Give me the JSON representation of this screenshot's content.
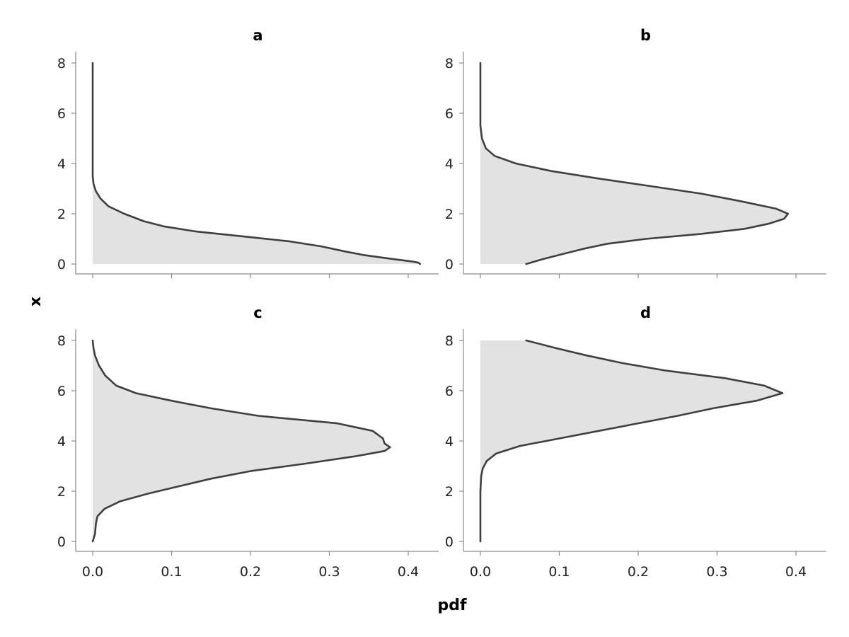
{
  "chart_data": {
    "type": "area",
    "orientation": "horizontal-density",
    "xlabel": "pdf",
    "ylabel": "x",
    "xlim": [
      0,
      0.4
    ],
    "ylim": [
      0,
      8
    ],
    "xticks": [
      "0.0",
      "0.1",
      "0.2",
      "0.3",
      "0.4"
    ],
    "yticks": [
      "0",
      "2",
      "4",
      "6",
      "8"
    ],
    "grid": false,
    "fill_color": "#e2e2e2",
    "line_color": "#3f3f3f",
    "panels": [
      {
        "title": "a",
        "curve": [
          {
            "x": 0.0,
            "pdf": 0.415
          },
          {
            "x": 0.05,
            "pdf": 0.413
          },
          {
            "x": 0.1,
            "pdf": 0.405
          },
          {
            "x": 0.2,
            "pdf": 0.38
          },
          {
            "x": 0.35,
            "pdf": 0.345
          },
          {
            "x": 0.5,
            "pdf": 0.32
          },
          {
            "x": 0.7,
            "pdf": 0.29
          },
          {
            "x": 0.9,
            "pdf": 0.25
          },
          {
            "x": 1.1,
            "pdf": 0.19
          },
          {
            "x": 1.3,
            "pdf": 0.13
          },
          {
            "x": 1.5,
            "pdf": 0.09
          },
          {
            "x": 1.7,
            "pdf": 0.065
          },
          {
            "x": 2.0,
            "pdf": 0.04
          },
          {
            "x": 2.3,
            "pdf": 0.02
          },
          {
            "x": 2.6,
            "pdf": 0.01
          },
          {
            "x": 2.9,
            "pdf": 0.004
          },
          {
            "x": 3.2,
            "pdf": 0.001
          },
          {
            "x": 3.5,
            "pdf": 0.0
          },
          {
            "x": 5.0,
            "pdf": 0.0
          },
          {
            "x": 8.0,
            "pdf": 0.0
          }
        ]
      },
      {
        "title": "b",
        "curve": [
          {
            "x": 0.0,
            "pdf": 0.058
          },
          {
            "x": 0.2,
            "pdf": 0.08
          },
          {
            "x": 0.4,
            "pdf": 0.105
          },
          {
            "x": 0.6,
            "pdf": 0.13
          },
          {
            "x": 0.8,
            "pdf": 0.16
          },
          {
            "x": 1.0,
            "pdf": 0.21
          },
          {
            "x": 1.2,
            "pdf": 0.28
          },
          {
            "x": 1.4,
            "pdf": 0.335
          },
          {
            "x": 1.6,
            "pdf": 0.365
          },
          {
            "x": 1.8,
            "pdf": 0.385
          },
          {
            "x": 2.0,
            "pdf": 0.39
          },
          {
            "x": 2.2,
            "pdf": 0.375
          },
          {
            "x": 2.5,
            "pdf": 0.33
          },
          {
            "x": 2.8,
            "pdf": 0.28
          },
          {
            "x": 3.1,
            "pdf": 0.215
          },
          {
            "x": 3.4,
            "pdf": 0.15
          },
          {
            "x": 3.7,
            "pdf": 0.09
          },
          {
            "x": 4.0,
            "pdf": 0.045
          },
          {
            "x": 4.3,
            "pdf": 0.018
          },
          {
            "x": 4.6,
            "pdf": 0.007
          },
          {
            "x": 5.0,
            "pdf": 0.002
          },
          {
            "x": 5.5,
            "pdf": 0.0
          },
          {
            "x": 8.0,
            "pdf": 0.0
          }
        ]
      },
      {
        "title": "c",
        "curve": [
          {
            "x": 0.0,
            "pdf": 0.0
          },
          {
            "x": 0.3,
            "pdf": 0.003
          },
          {
            "x": 0.7,
            "pdf": 0.004
          },
          {
            "x": 1.0,
            "pdf": 0.006
          },
          {
            "x": 1.3,
            "pdf": 0.015
          },
          {
            "x": 1.6,
            "pdf": 0.035
          },
          {
            "x": 1.9,
            "pdf": 0.07
          },
          {
            "x": 2.2,
            "pdf": 0.11
          },
          {
            "x": 2.5,
            "pdf": 0.15
          },
          {
            "x": 2.8,
            "pdf": 0.2
          },
          {
            "x": 3.1,
            "pdf": 0.27
          },
          {
            "x": 3.4,
            "pdf": 0.335
          },
          {
            "x": 3.6,
            "pdf": 0.37
          },
          {
            "x": 3.75,
            "pdf": 0.377
          },
          {
            "x": 3.9,
            "pdf": 0.37
          },
          {
            "x": 4.1,
            "pdf": 0.368
          },
          {
            "x": 4.4,
            "pdf": 0.355
          },
          {
            "x": 4.7,
            "pdf": 0.31
          },
          {
            "x": 5.0,
            "pdf": 0.21
          },
          {
            "x": 5.3,
            "pdf": 0.15
          },
          {
            "x": 5.6,
            "pdf": 0.1
          },
          {
            "x": 5.9,
            "pdf": 0.055
          },
          {
            "x": 6.2,
            "pdf": 0.03
          },
          {
            "x": 6.6,
            "pdf": 0.016
          },
          {
            "x": 7.0,
            "pdf": 0.008
          },
          {
            "x": 7.4,
            "pdf": 0.003
          },
          {
            "x": 7.7,
            "pdf": 0.001
          },
          {
            "x": 8.0,
            "pdf": 0.0
          }
        ]
      },
      {
        "title": "d",
        "curve": [
          {
            "x": 0.0,
            "pdf": 0.0
          },
          {
            "x": 1.0,
            "pdf": 0.0
          },
          {
            "x": 2.0,
            "pdf": 0.0
          },
          {
            "x": 2.6,
            "pdf": 0.001
          },
          {
            "x": 2.9,
            "pdf": 0.003
          },
          {
            "x": 3.2,
            "pdf": 0.008
          },
          {
            "x": 3.5,
            "pdf": 0.02
          },
          {
            "x": 3.8,
            "pdf": 0.05
          },
          {
            "x": 4.1,
            "pdf": 0.1
          },
          {
            "x": 4.4,
            "pdf": 0.15
          },
          {
            "x": 4.7,
            "pdf": 0.2
          },
          {
            "x": 5.0,
            "pdf": 0.25
          },
          {
            "x": 5.3,
            "pdf": 0.295
          },
          {
            "x": 5.6,
            "pdf": 0.35
          },
          {
            "x": 5.9,
            "pdf": 0.383
          },
          {
            "x": 6.2,
            "pdf": 0.36
          },
          {
            "x": 6.5,
            "pdf": 0.31
          },
          {
            "x": 6.8,
            "pdf": 0.235
          },
          {
            "x": 7.1,
            "pdf": 0.18
          },
          {
            "x": 7.4,
            "pdf": 0.135
          },
          {
            "x": 7.7,
            "pdf": 0.095
          },
          {
            "x": 8.0,
            "pdf": 0.058
          }
        ]
      }
    ]
  }
}
